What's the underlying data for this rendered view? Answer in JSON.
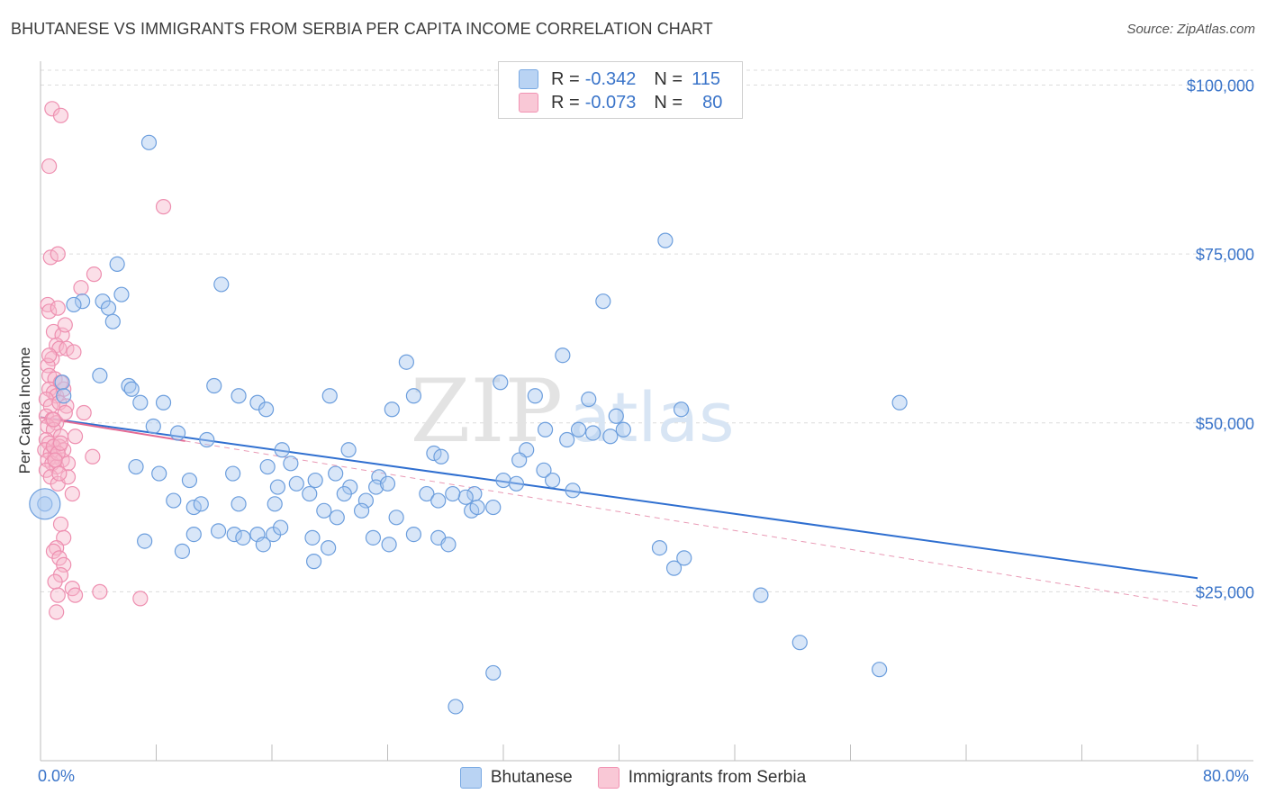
{
  "header": {
    "title": "BHUTANESE VS IMMIGRANTS FROM SERBIA PER CAPITA INCOME CORRELATION CHART",
    "source": "Source: ZipAtlas.com"
  },
  "watermark": {
    "zip": "ZIP",
    "atlas": "atlas"
  },
  "legend": {
    "rows": [
      {
        "r_label": "R =",
        "r_value": "-0.342",
        "n_label": "N =",
        "n_value": "115",
        "color": "#a9c8f0"
      },
      {
        "r_label": "R =",
        "r_value": "-0.073",
        "n_label": "N =",
        "n_value": "80",
        "color": "#f7b8cb"
      }
    ]
  },
  "chart_data": {
    "type": "scatter",
    "title": "BHUTANESE VS IMMIGRANTS FROM SERBIA PER CAPITA INCOME CORRELATION CHART",
    "xlabel": "",
    "ylabel": "Per Capita Income",
    "xlim": [
      0,
      80
    ],
    "ylim": [
      0,
      105000
    ],
    "x_tick_labels": [
      "0.0%",
      "80.0%"
    ],
    "y_ticks": [
      25000,
      50000,
      75000,
      100000
    ],
    "y_tick_labels": [
      "$25,000",
      "$50,000",
      "$75,000",
      "$100,000"
    ],
    "grid": true,
    "legend_position": "top-center",
    "series": [
      {
        "name": "Bhutanese",
        "color": "#7aaae3",
        "points": [
          [
            0.3,
            38000
          ],
          [
            7.5,
            91500
          ],
          [
            12.5,
            70500
          ],
          [
            5.3,
            73500
          ],
          [
            5.6,
            69000
          ],
          [
            4.3,
            68000
          ],
          [
            2.9,
            68000
          ],
          [
            2.3,
            67500
          ],
          [
            4.7,
            67000
          ],
          [
            5.0,
            65000
          ],
          [
            43.2,
            77000
          ],
          [
            38.9,
            68000
          ],
          [
            36.1,
            60000
          ],
          [
            25.3,
            59000
          ],
          [
            20.0,
            54000
          ],
          [
            25.8,
            54000
          ],
          [
            34.2,
            54000
          ],
          [
            37.9,
            53500
          ],
          [
            31.8,
            56000
          ],
          [
            59.4,
            53000
          ],
          [
            44.3,
            52000
          ],
          [
            4.1,
            57000
          ],
          [
            1.5,
            56000
          ],
          [
            1.6,
            54000
          ],
          [
            6.1,
            55500
          ],
          [
            6.3,
            55000
          ],
          [
            6.9,
            53000
          ],
          [
            8.5,
            53000
          ],
          [
            12.0,
            55500
          ],
          [
            13.7,
            54000
          ],
          [
            15.0,
            53000
          ],
          [
            15.6,
            52000
          ],
          [
            24.3,
            52000
          ],
          [
            7.8,
            49500
          ],
          [
            9.5,
            48500
          ],
          [
            11.5,
            47500
          ],
          [
            16.7,
            46000
          ],
          [
            17.3,
            44000
          ],
          [
            21.3,
            46000
          ],
          [
            27.2,
            45500
          ],
          [
            27.7,
            45000
          ],
          [
            33.6,
            46000
          ],
          [
            34.9,
            49000
          ],
          [
            36.4,
            47500
          ],
          [
            37.2,
            49000
          ],
          [
            39.4,
            48000
          ],
          [
            39.8,
            51000
          ],
          [
            40.3,
            49000
          ],
          [
            38.2,
            48500
          ],
          [
            33.1,
            44500
          ],
          [
            34.8,
            43000
          ],
          [
            6.6,
            43500
          ],
          [
            8.2,
            42500
          ],
          [
            10.3,
            41500
          ],
          [
            13.3,
            42500
          ],
          [
            15.7,
            43500
          ],
          [
            16.4,
            40500
          ],
          [
            17.7,
            41000
          ],
          [
            19.0,
            41500
          ],
          [
            20.4,
            42500
          ],
          [
            21.4,
            40500
          ],
          [
            22.5,
            38500
          ],
          [
            23.4,
            42000
          ],
          [
            23.2,
            40500
          ],
          [
            24.0,
            41000
          ],
          [
            21.0,
            39500
          ],
          [
            18.6,
            39500
          ],
          [
            30.0,
            39500
          ],
          [
            29.4,
            39000
          ],
          [
            28.5,
            39500
          ],
          [
            26.7,
            39500
          ],
          [
            27.5,
            38500
          ],
          [
            9.2,
            38500
          ],
          [
            10.6,
            37500
          ],
          [
            11.1,
            38000
          ],
          [
            13.7,
            38000
          ],
          [
            16.2,
            38000
          ],
          [
            19.6,
            37000
          ],
          [
            20.5,
            36000
          ],
          [
            22.2,
            37000
          ],
          [
            29.8,
            37000
          ],
          [
            30.2,
            37500
          ],
          [
            32.0,
            41500
          ],
          [
            31.3,
            37500
          ],
          [
            35.4,
            41500
          ],
          [
            36.8,
            40000
          ],
          [
            32.9,
            41000
          ],
          [
            24.6,
            36000
          ],
          [
            12.3,
            34000
          ],
          [
            13.4,
            33500
          ],
          [
            14.0,
            33000
          ],
          [
            15.0,
            33500
          ],
          [
            16.1,
            33500
          ],
          [
            16.6,
            34500
          ],
          [
            18.8,
            33000
          ],
          [
            10.6,
            33500
          ],
          [
            7.2,
            32500
          ],
          [
            9.8,
            31000
          ],
          [
            15.4,
            32000
          ],
          [
            19.9,
            31500
          ],
          [
            23.0,
            33000
          ],
          [
            24.1,
            32000
          ],
          [
            25.8,
            33500
          ],
          [
            27.5,
            33000
          ],
          [
            28.2,
            32000
          ],
          [
            42.8,
            31500
          ],
          [
            44.5,
            30000
          ],
          [
            49.8,
            24500
          ],
          [
            18.9,
            29500
          ],
          [
            43.8,
            28500
          ],
          [
            52.5,
            17500
          ],
          [
            58.0,
            13500
          ],
          [
            31.3,
            13000
          ],
          [
            28.7,
            8000
          ]
        ]
      },
      {
        "name": "Immigrants from Serbia",
        "color": "#f193b3",
        "points": [
          [
            0.8,
            96500
          ],
          [
            1.4,
            95500
          ],
          [
            0.6,
            88000
          ],
          [
            8.5,
            82000
          ],
          [
            0.7,
            74500
          ],
          [
            1.2,
            75000
          ],
          [
            3.7,
            72000
          ],
          [
            2.8,
            70000
          ],
          [
            0.5,
            67500
          ],
          [
            0.6,
            66500
          ],
          [
            1.2,
            67000
          ],
          [
            0.9,
            63500
          ],
          [
            1.5,
            63000
          ],
          [
            1.1,
            61500
          ],
          [
            1.3,
            61000
          ],
          [
            0.8,
            59500
          ],
          [
            0.5,
            58500
          ],
          [
            0.6,
            57000
          ],
          [
            1.0,
            56500
          ],
          [
            0.6,
            55000
          ],
          [
            0.9,
            54500
          ],
          [
            1.1,
            54000
          ],
          [
            1.6,
            55000
          ],
          [
            0.4,
            53500
          ],
          [
            0.7,
            52500
          ],
          [
            1.3,
            53000
          ],
          [
            3.0,
            51500
          ],
          [
            0.4,
            51000
          ],
          [
            0.8,
            50500
          ],
          [
            1.1,
            50000
          ],
          [
            0.5,
            49500
          ],
          [
            0.9,
            49000
          ],
          [
            1.4,
            48000
          ],
          [
            0.4,
            47500
          ],
          [
            0.6,
            47000
          ],
          [
            0.9,
            46500
          ],
          [
            1.3,
            46500
          ],
          [
            2.4,
            48000
          ],
          [
            0.3,
            46000
          ],
          [
            0.7,
            45500
          ],
          [
            1.0,
            45000
          ],
          [
            1.5,
            44500
          ],
          [
            0.5,
            44500
          ],
          [
            0.8,
            44000
          ],
          [
            1.1,
            43500
          ],
          [
            1.9,
            44000
          ],
          [
            3.6,
            45000
          ],
          [
            0.4,
            43000
          ],
          [
            0.7,
            42000
          ],
          [
            1.2,
            41000
          ],
          [
            1.9,
            42000
          ],
          [
            2.2,
            39500
          ],
          [
            1.4,
            35000
          ],
          [
            1.6,
            33000
          ],
          [
            1.1,
            31500
          ],
          [
            0.9,
            31000
          ],
          [
            1.3,
            30000
          ],
          [
            1.6,
            29000
          ],
          [
            1.4,
            27500
          ],
          [
            1.0,
            26500
          ],
          [
            2.2,
            25500
          ],
          [
            1.2,
            24500
          ],
          [
            2.4,
            24500
          ],
          [
            4.1,
            25000
          ],
          [
            6.9,
            24000
          ],
          [
            1.1,
            22000
          ],
          [
            0.9,
            46500
          ],
          [
            1.6,
            46000
          ],
          [
            1.2,
            45500
          ],
          [
            1.8,
            52500
          ],
          [
            0.6,
            60000
          ],
          [
            1.8,
            61000
          ],
          [
            1.7,
            64500
          ],
          [
            2.3,
            60500
          ],
          [
            1.4,
            56000
          ],
          [
            1.7,
            51500
          ],
          [
            0.9,
            50500
          ],
          [
            1.4,
            47000
          ],
          [
            1.0,
            44500
          ],
          [
            1.3,
            42500
          ]
        ]
      }
    ]
  },
  "x_axis": {
    "min_label": "0.0%",
    "max_label": "80.0%"
  },
  "bottom_legend": {
    "items": [
      {
        "label": "Bhutanese",
        "color": "#a9c8f0"
      },
      {
        "label": "Immigrants from Serbia",
        "color": "#f7b8cb"
      }
    ]
  }
}
